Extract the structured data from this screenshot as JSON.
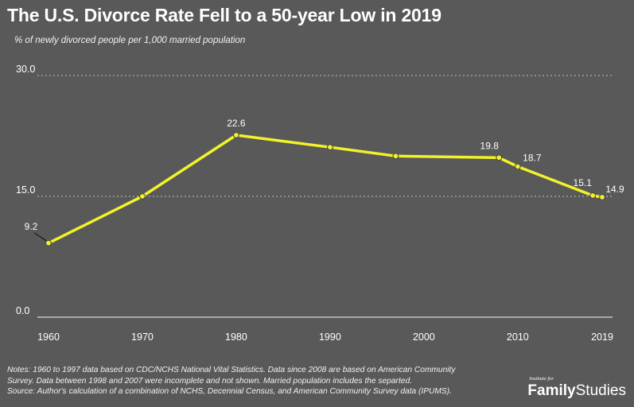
{
  "chart_data": {
    "type": "line",
    "title": "The U.S. Divorce Rate Fell to a 50-year Low in 2019",
    "subtitle": "% of newly divorced people per 1,000 married population",
    "x": [
      1960,
      1970,
      1980,
      1990,
      1997,
      2008,
      2010,
      2018,
      2019
    ],
    "values": [
      9.2,
      15.0,
      22.6,
      21.1,
      20.0,
      19.8,
      18.7,
      15.1,
      14.9
    ],
    "point_labels": [
      "9.2",
      "",
      "22.6",
      "",
      "",
      "19.8",
      "18.7",
      "15.1",
      "14.9"
    ],
    "xticks": [
      "1960",
      "1970",
      "1980",
      "1990",
      "2000",
      "2010",
      "2019"
    ],
    "xtick_values": [
      1960,
      1970,
      1980,
      1990,
      2000,
      2010,
      2019
    ],
    "yticks": [
      "0.0",
      "15.0",
      "30.0"
    ],
    "ytick_values": [
      0,
      15,
      30
    ],
    "xlim": [
      1960,
      2019
    ],
    "ylim": [
      0,
      30
    ],
    "grid": "horizontal-dotted",
    "line_color": "#f2f22a",
    "background": "#595959"
  },
  "notes": {
    "line1": "Notes: 1960 to 1997 data based on CDC/NCHS National Vital Statistics. Data since 2008 are based on American Community",
    "line2": "Survey. Data between 1998 and 2007 were incomplete and not shown. Married population includes the separted.",
    "line3": "Source: Author's calculation of a combination of NCHS, Decennial Census, and American Community Survey data (IPUMS)."
  },
  "logo": {
    "small": "Institute for",
    "family": "Family",
    "studies": "Studies"
  }
}
